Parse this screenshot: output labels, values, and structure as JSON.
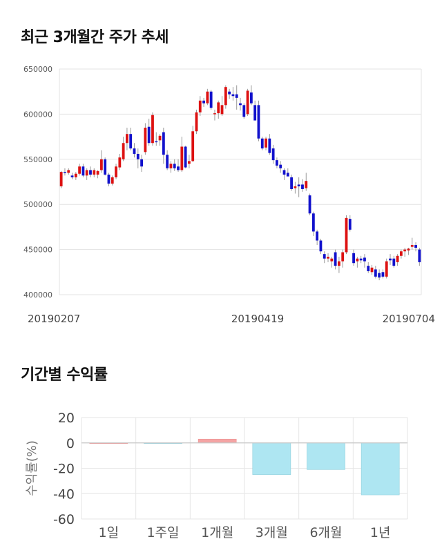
{
  "sections": {
    "price_title": "최근 3개월간 주가 추세",
    "returns_title": "기간별 수익률"
  },
  "chart_data": [
    {
      "type": "candlestick",
      "title": "최근 3개월간 주가 추세",
      "ylim": [
        400000,
        650000
      ],
      "yticks": [
        400000,
        450000,
        500000,
        550000,
        600000,
        650000
      ],
      "x_labels": [
        "20190207",
        "20190419",
        "20190704"
      ],
      "grid": true,
      "colors": {
        "up": "#dd1111",
        "down": "#1111cc",
        "wick": "#999999"
      },
      "ohlc": [
        [
          520000,
          537000,
          518000,
          536000
        ],
        [
          536000,
          540000,
          532000,
          535000
        ],
        [
          535000,
          540000,
          533000,
          538000
        ],
        [
          532000,
          535000,
          528000,
          530000
        ],
        [
          530000,
          536000,
          527000,
          534000
        ],
        [
          534000,
          545000,
          532000,
          542000
        ],
        [
          542000,
          545000,
          530000,
          532000
        ],
        [
          532000,
          540000,
          527000,
          538000
        ],
        [
          538000,
          542000,
          530000,
          533000
        ],
        [
          533000,
          540000,
          530000,
          538000
        ],
        [
          533000,
          538000,
          529000,
          537000
        ],
        [
          538000,
          560000,
          535000,
          550000
        ],
        [
          550000,
          552000,
          532000,
          533000
        ],
        [
          533000,
          535000,
          520000,
          523000
        ],
        [
          523000,
          532000,
          521000,
          530000
        ],
        [
          530000,
          545000,
          528000,
          542000
        ],
        [
          541000,
          556000,
          538000,
          552000
        ],
        [
          550000,
          575000,
          548000,
          568000
        ],
        [
          568000,
          585000,
          560000,
          578000
        ],
        [
          578000,
          585000,
          560000,
          562000
        ],
        [
          562000,
          568000,
          552000,
          556000
        ],
        [
          556000,
          562000,
          540000,
          550000
        ],
        [
          550000,
          555000,
          536000,
          542000
        ],
        [
          558000,
          590000,
          555000,
          585000
        ],
        [
          586000,
          595000,
          565000,
          568000
        ],
        [
          568000,
          602000,
          565000,
          599000
        ],
        [
          570000,
          580000,
          565000,
          569000
        ],
        [
          571000,
          578000,
          565000,
          576000
        ],
        [
          580000,
          585000,
          545000,
          555000
        ],
        [
          555000,
          560000,
          538000,
          540000
        ],
        [
          540000,
          548000,
          535000,
          545000
        ],
        [
          545000,
          550000,
          537000,
          540000
        ],
        [
          542000,
          550000,
          536000,
          538000
        ],
        [
          538000,
          575000,
          536000,
          564000
        ],
        [
          564000,
          565000,
          540000,
          541000
        ],
        [
          545000,
          555000,
          540000,
          548000
        ],
        [
          548000,
          587000,
          547000,
          581000
        ],
        [
          581000,
          605000,
          578000,
          602000
        ],
        [
          602000,
          620000,
          598000,
          615000
        ],
        [
          615000,
          618000,
          608000,
          612000
        ],
        [
          612000,
          628000,
          610000,
          625000
        ],
        [
          625000,
          627000,
          605000,
          607000
        ],
        [
          600000,
          605000,
          593000,
          601000
        ],
        [
          601000,
          615000,
          595000,
          613000
        ],
        [
          600000,
          620000,
          598000,
          610000
        ],
        [
          610000,
          632000,
          606000,
          630000
        ],
        [
          625000,
          628000,
          617000,
          622000
        ],
        [
          622000,
          630000,
          615000,
          620000
        ],
        [
          622000,
          632000,
          605000,
          618000
        ],
        [
          612000,
          618000,
          604000,
          610000
        ],
        [
          610000,
          612000,
          595000,
          597000
        ],
        [
          600000,
          628000,
          598000,
          626000
        ],
        [
          624000,
          632000,
          610000,
          612000
        ],
        [
          610000,
          615000,
          595000,
          593000
        ],
        [
          610000,
          615000,
          570000,
          573000
        ],
        [
          573000,
          575000,
          560000,
          562000
        ],
        [
          563000,
          575000,
          560000,
          573000
        ],
        [
          573000,
          578000,
          555000,
          557000
        ],
        [
          562000,
          566000,
          545000,
          549000
        ],
        [
          549000,
          552000,
          540000,
          543000
        ],
        [
          544000,
          548000,
          535000,
          540000
        ],
        [
          538000,
          540000,
          527000,
          533000
        ],
        [
          535000,
          540000,
          532000,
          531000
        ],
        [
          530000,
          533000,
          515000,
          517000
        ],
        [
          518000,
          525000,
          512000,
          520000
        ],
        [
          522000,
          530000,
          508000,
          520000
        ],
        [
          522000,
          528000,
          514000,
          517000
        ],
        [
          518000,
          535000,
          515000,
          526000
        ],
        [
          510000,
          512000,
          488000,
          490000
        ],
        [
          490000,
          492000,
          465000,
          470000
        ],
        [
          470000,
          472000,
          455000,
          460000
        ],
        [
          460000,
          462000,
          445000,
          448000
        ],
        [
          445000,
          448000,
          435000,
          440000
        ],
        [
          440000,
          446000,
          436000,
          442000
        ],
        [
          437000,
          442000,
          430000,
          440000
        ],
        [
          447000,
          450000,
          428000,
          432000
        ],
        [
          432000,
          442000,
          424000,
          437000
        ],
        [
          437000,
          450000,
          430000,
          447000
        ],
        [
          447000,
          488000,
          445000,
          485000
        ],
        [
          484000,
          488000,
          470000,
          472000
        ],
        [
          446000,
          450000,
          432000,
          435000
        ],
        [
          437000,
          442000,
          430000,
          440000
        ],
        [
          440000,
          443000,
          435000,
          438000
        ],
        [
          441000,
          445000,
          430000,
          437000
        ],
        [
          432000,
          436000,
          424000,
          426000
        ],
        [
          425000,
          433000,
          422000,
          430000
        ],
        [
          428000,
          432000,
          418000,
          420000
        ],
        [
          424000,
          428000,
          416000,
          419000
        ],
        [
          425000,
          428000,
          418000,
          420000
        ],
        [
          420000,
          440000,
          418000,
          437000
        ],
        [
          440000,
          445000,
          433000,
          438000
        ],
        [
          440000,
          443000,
          430000,
          432000
        ],
        [
          436000,
          445000,
          432000,
          443000
        ],
        [
          443000,
          450000,
          440000,
          448000
        ],
        [
          448000,
          452000,
          442000,
          450000
        ],
        [
          449000,
          452000,
          444000,
          451000
        ],
        [
          453000,
          463000,
          450000,
          455000
        ],
        [
          455000,
          458000,
          448000,
          452000
        ],
        [
          450000,
          452000,
          432000,
          436000
        ]
      ]
    },
    {
      "type": "bar",
      "title": "기간별 수익률",
      "ylabel": "수익률(%)",
      "ylim": [
        -60,
        20
      ],
      "yticks": [
        20,
        0,
        -20,
        -40,
        -60
      ],
      "categories": [
        "1일",
        "1주일",
        "1개월",
        "3개월",
        "6개월",
        "1년"
      ],
      "values": [
        0,
        -0.3,
        3,
        -25,
        -21,
        -41
      ],
      "colors": {
        "positive": "#f4a4a4",
        "negative": "#aee6f2",
        "zero_line": "#c8c8c8"
      },
      "grid": true
    }
  ]
}
